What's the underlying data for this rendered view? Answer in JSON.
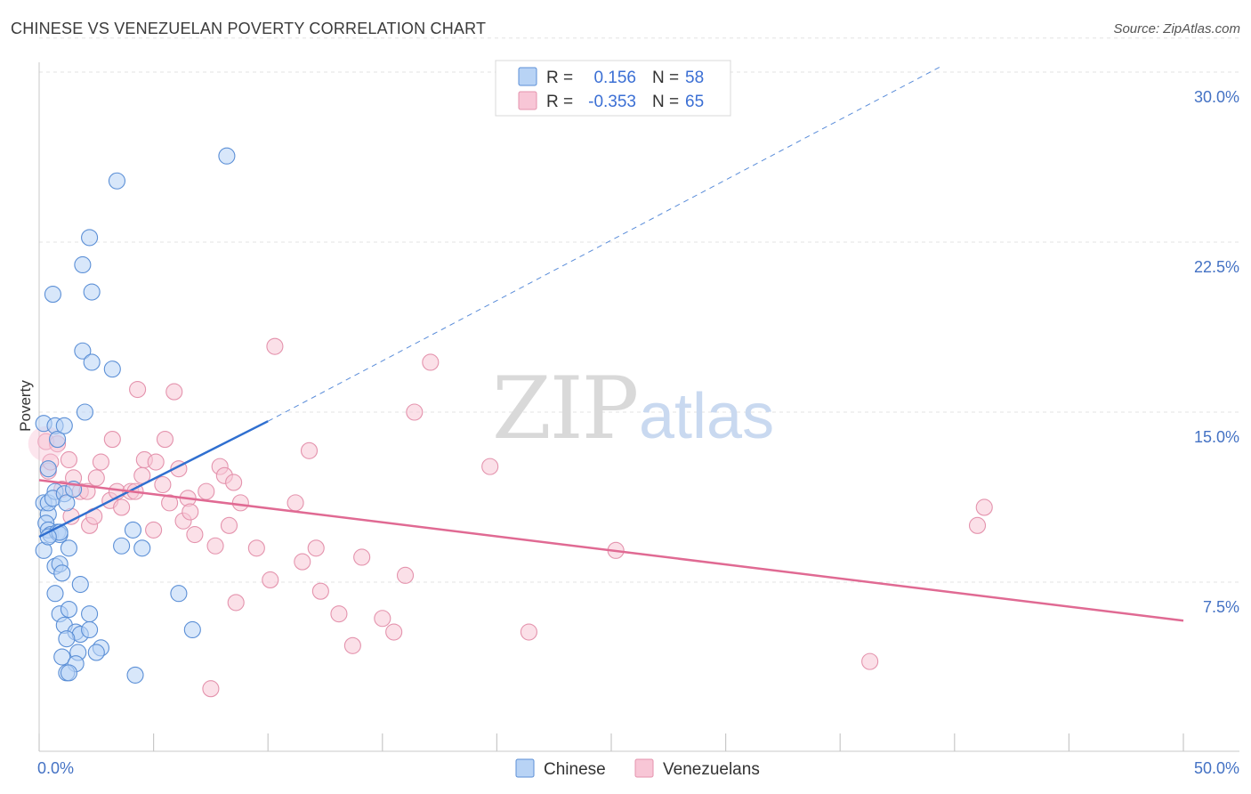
{
  "title": "CHINESE VS VENEZUELAN POVERTY CORRELATION CHART",
  "source": "Source: ZipAtlas.com",
  "watermark": {
    "zip": "ZIP",
    "atlas": "atlas"
  },
  "colors": {
    "chinese_fill": "#b8d3f5",
    "chinese_stroke": "#5b8fd6",
    "chinese_line": "#2f6fd0",
    "venezuelan_fill": "#f8c6d6",
    "venezuelan_stroke": "#e493ad",
    "venezuelan_line": "#e06a93",
    "grid": "#e3e3e3",
    "axis_text": "#4472c4"
  },
  "legend": {
    "rows": [
      {
        "r_label": "R =",
        "r_value": "0.156",
        "n_label": "N =",
        "n_value": "58"
      },
      {
        "r_label": "R =",
        "r_value": "-0.353",
        "n_label": "N =",
        "n_value": "65"
      }
    ]
  },
  "chart_data": {
    "type": "scatter",
    "xlabel": "",
    "ylabel": "Poverty",
    "xlim": [
      0,
      50
    ],
    "ylim": [
      0,
      31.5
    ],
    "x_tick_labels": [
      "0.0%",
      "50.0%"
    ],
    "y_ticks": [
      7.5,
      15.0,
      22.5,
      30.0
    ],
    "y_tick_labels": [
      "7.5%",
      "15.0%",
      "22.5%",
      "30.0%"
    ],
    "grid": true,
    "legend_position": "top-center",
    "series": [
      {
        "name": "Chinese",
        "r": 0.156,
        "n": 58,
        "trend": {
          "x0": 0,
          "y0": 9.5,
          "x1": 10,
          "y1": 14.6,
          "dashed_to_x": 39.5,
          "dashed_to_y": 30.3
        },
        "points": [
          [
            0.2,
            14.5
          ],
          [
            0.4,
            12.5
          ],
          [
            0.2,
            11.0
          ],
          [
            0.4,
            10.5
          ],
          [
            0.4,
            11.0
          ],
          [
            0.3,
            10.1
          ],
          [
            0.4,
            9.8
          ],
          [
            0.5,
            9.6
          ],
          [
            0.2,
            8.9
          ],
          [
            0.7,
            11.5
          ],
          [
            0.6,
            11.2
          ],
          [
            0.7,
            14.4
          ],
          [
            0.8,
            13.8
          ],
          [
            1.1,
            14.4
          ],
          [
            1.1,
            11.4
          ],
          [
            1.2,
            11.0
          ],
          [
            0.8,
            9.7
          ],
          [
            0.9,
            9.6
          ],
          [
            1.3,
            9.0
          ],
          [
            0.7,
            8.2
          ],
          [
            0.9,
            8.3
          ],
          [
            1.0,
            7.9
          ],
          [
            0.7,
            7.0
          ],
          [
            1.8,
            7.4
          ],
          [
            0.9,
            6.1
          ],
          [
            1.3,
            6.3
          ],
          [
            2.2,
            6.1
          ],
          [
            1.1,
            5.6
          ],
          [
            1.6,
            5.3
          ],
          [
            1.8,
            5.2
          ],
          [
            1.2,
            5.0
          ],
          [
            2.7,
            4.6
          ],
          [
            2.5,
            4.4
          ],
          [
            1.7,
            4.4
          ],
          [
            1.0,
            4.2
          ],
          [
            1.6,
            3.9
          ],
          [
            1.2,
            3.5
          ],
          [
            1.3,
            3.5
          ],
          [
            4.2,
            3.4
          ],
          [
            2.2,
            5.4
          ],
          [
            4.1,
            9.8
          ],
          [
            3.6,
            9.1
          ],
          [
            4.5,
            9.0
          ],
          [
            6.1,
            7.0
          ],
          [
            6.7,
            5.4
          ],
          [
            0.6,
            20.2
          ],
          [
            1.9,
            21.5
          ],
          [
            2.2,
            22.7
          ],
          [
            2.3,
            20.3
          ],
          [
            1.9,
            17.7
          ],
          [
            2.3,
            17.2
          ],
          [
            3.2,
            16.9
          ],
          [
            2.0,
            15.0
          ],
          [
            3.4,
            25.2
          ],
          [
            8.2,
            26.3
          ],
          [
            0.9,
            9.7
          ],
          [
            0.4,
            9.5
          ],
          [
            1.5,
            11.6
          ]
        ]
      },
      {
        "name": "Venezuelans",
        "r": -0.353,
        "n": 65,
        "trend": {
          "x0": 0,
          "y0": 12.0,
          "x1": 50,
          "y1": 5.8
        },
        "points": [
          [
            0.3,
            13.7
          ],
          [
            0.4,
            12.4
          ],
          [
            0.5,
            12.8
          ],
          [
            0.8,
            13.6
          ],
          [
            1.3,
            12.9
          ],
          [
            1.5,
            12.1
          ],
          [
            1.8,
            11.5
          ],
          [
            2.1,
            11.5
          ],
          [
            2.5,
            12.1
          ],
          [
            2.7,
            12.8
          ],
          [
            3.2,
            13.8
          ],
          [
            3.1,
            11.1
          ],
          [
            3.4,
            11.5
          ],
          [
            3.6,
            10.8
          ],
          [
            4.0,
            11.5
          ],
          [
            4.2,
            11.5
          ],
          [
            4.3,
            16.0
          ],
          [
            4.5,
            12.2
          ],
          [
            4.6,
            12.9
          ],
          [
            5.0,
            9.8
          ],
          [
            5.1,
            12.8
          ],
          [
            5.4,
            11.8
          ],
          [
            5.5,
            13.8
          ],
          [
            5.7,
            11.0
          ],
          [
            5.9,
            15.9
          ],
          [
            6.1,
            12.5
          ],
          [
            6.3,
            10.2
          ],
          [
            6.5,
            11.2
          ],
          [
            6.6,
            10.6
          ],
          [
            6.8,
            9.6
          ],
          [
            7.3,
            11.5
          ],
          [
            7.7,
            9.1
          ],
          [
            7.9,
            12.6
          ],
          [
            8.1,
            12.2
          ],
          [
            8.5,
            11.9
          ],
          [
            8.3,
            10.0
          ],
          [
            8.8,
            11.0
          ],
          [
            9.5,
            9.0
          ],
          [
            10.1,
            7.6
          ],
          [
            10.3,
            17.9
          ],
          [
            11.2,
            11.0
          ],
          [
            11.8,
            13.3
          ],
          [
            11.5,
            8.4
          ],
          [
            12.1,
            9.0
          ],
          [
            12.3,
            7.1
          ],
          [
            13.1,
            6.1
          ],
          [
            13.7,
            4.7
          ],
          [
            14.1,
            8.6
          ],
          [
            15.0,
            5.9
          ],
          [
            15.5,
            5.3
          ],
          [
            16.0,
            7.8
          ],
          [
            16.4,
            15.0
          ],
          [
            17.1,
            17.2
          ],
          [
            19.7,
            12.6
          ],
          [
            21.4,
            5.3
          ],
          [
            25.2,
            8.9
          ],
          [
            36.3,
            4.0
          ],
          [
            41.0,
            10.0
          ],
          [
            41.3,
            10.8
          ],
          [
            7.5,
            2.8
          ],
          [
            8.6,
            6.6
          ],
          [
            1.4,
            10.4
          ],
          [
            2.2,
            10.0
          ],
          [
            1.0,
            11.6
          ],
          [
            2.4,
            10.4
          ]
        ]
      }
    ]
  }
}
